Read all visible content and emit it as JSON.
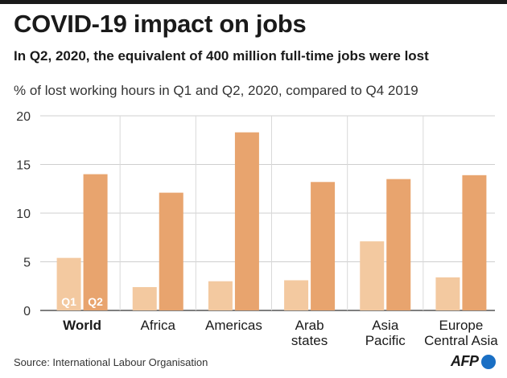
{
  "header": {
    "title": "COVID-19 impact on jobs",
    "subtitle": "In Q2, 2020, the equivalent of 400 million full-time jobs were lost",
    "description": "% of lost working hours in Q1 and Q2, 2020, compared to Q4 2019"
  },
  "footer": {
    "source": "Source: International Labour Organisation",
    "logo_text": "AFP"
  },
  "colors": {
    "q1": "#f3c9a0",
    "q2": "#e8a46e",
    "grid": "#cfcfcf",
    "axis": "#333333",
    "logo_dot": "#1a6fc4"
  },
  "chart_data": {
    "type": "bar",
    "categories": [
      "World",
      "Africa",
      "Americas",
      "Arab states",
      "Asia Pacific",
      "Europe Central Asia"
    ],
    "category_lines": [
      [
        "World"
      ],
      [
        "Africa"
      ],
      [
        "Americas"
      ],
      [
        "Arab",
        "states"
      ],
      [
        "Asia",
        "Pacific"
      ],
      [
        "Europe",
        "Central Asia"
      ]
    ],
    "highlight_category": "World",
    "series": [
      {
        "name": "Q1",
        "values": [
          5.4,
          2.4,
          3.0,
          3.1,
          7.1,
          3.4
        ]
      },
      {
        "name": "Q2",
        "values": [
          14.0,
          12.1,
          18.3,
          13.2,
          13.5,
          13.9
        ]
      }
    ],
    "series_labels_shown_in": "World",
    "ylim": [
      0,
      20
    ],
    "yticks": [
      0,
      5,
      10,
      15,
      20
    ],
    "grid": true,
    "xlabel": "",
    "ylabel": ""
  }
}
